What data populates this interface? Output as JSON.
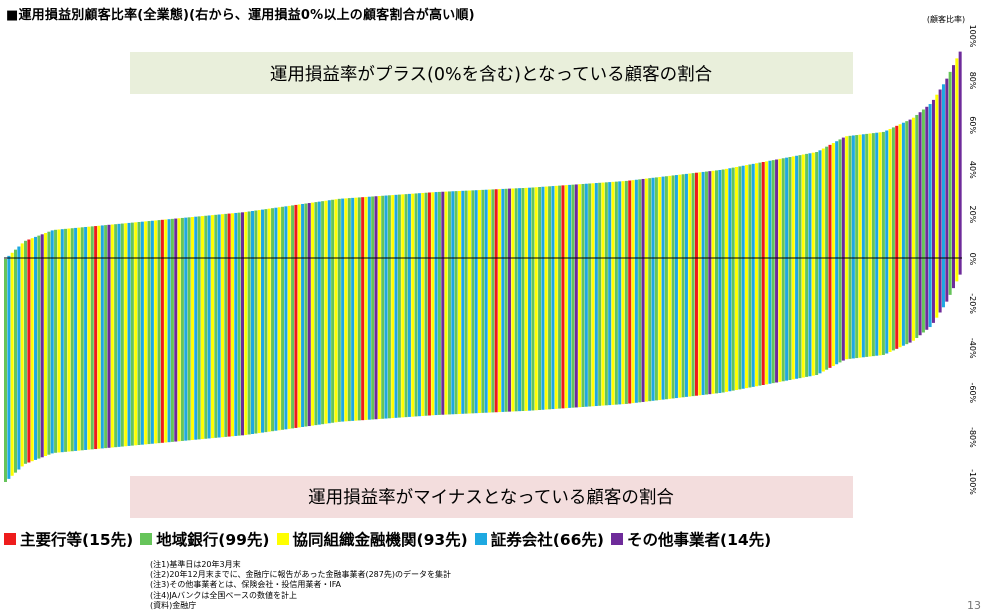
{
  "title": "■運用損益別顧客比率(全業態)(右から、運用損益0%以上の顧客割合が高い順)",
  "page_number": "13",
  "chart_data": {
    "type": "bar",
    "y_axis_unit_label": "(顧客比率)",
    "ylim": [
      -100,
      100
    ],
    "y_ticks": [
      100,
      80,
      60,
      40,
      20,
      0,
      -20,
      -40,
      -60,
      -80,
      -100
    ],
    "y_tick_labels": [
      "100%",
      "80%",
      "60%",
      "40%",
      "20%",
      "0%",
      "-20%",
      "-40%",
      "-60%",
      "-80%",
      "-100%"
    ],
    "positive_box_label": "運用損益率がプラス(0%を含む)となっている顧客の割合",
    "negative_box_label": "運用損益率がマイナスとなっている顧客の割合",
    "series_count": 287,
    "value_profile": {
      "x_fraction": [
        0,
        0.02,
        0.05,
        0.15,
        0.25,
        0.35,
        0.45,
        0.55,
        0.65,
        0.75,
        0.85,
        0.88,
        0.92,
        0.95,
        0.97,
        0.985,
        1.0
      ],
      "positive_percent": [
        0,
        8,
        13,
        17,
        21,
        27,
        30,
        32,
        35,
        40,
        48,
        55,
        57,
        63,
        70,
        80,
        93
      ]
    },
    "category_pattern": [
      "地域銀行",
      "証券会社",
      "協同組織金融機関",
      "地域銀行",
      "証券会社",
      "協同組織金融機関",
      "地域銀行",
      "主要行等",
      "協同組織金融機関",
      "証券会社",
      "地域銀行",
      "その他事業者",
      "協同組織金融機関",
      "地域銀行",
      "証券会社",
      "地域銀行",
      "協同組織金融機関",
      "証券会社",
      "地域銀行",
      "協同組織金融機関"
    ],
    "series": [
      {
        "name": "主要行等",
        "count_label": "(15先)",
        "color": "#ee1c1c"
      },
      {
        "name": "地域銀行",
        "count_label": "(99先)",
        "color": "#66c45a"
      },
      {
        "name": "協同組織金融機関",
        "count_label": "(93先)",
        "color": "#ffff00"
      },
      {
        "name": "証券会社",
        "count_label": "(66先)",
        "color": "#1ea9e1"
      },
      {
        "name": "その他事業者",
        "count_label": "(14先)",
        "color": "#6e2b9a"
      }
    ]
  },
  "notes": [
    "(注1)基準日は20年3月末",
    "(注2)20年12月末までに、金融庁に報告があった金融事業者(287先)のデータを集計",
    "(注3)その他事業者とは、保険会社・投信用業者・IFA",
    "(注4)JAバンクは全国ベースの数値を計上",
    "(資料)金融庁"
  ]
}
